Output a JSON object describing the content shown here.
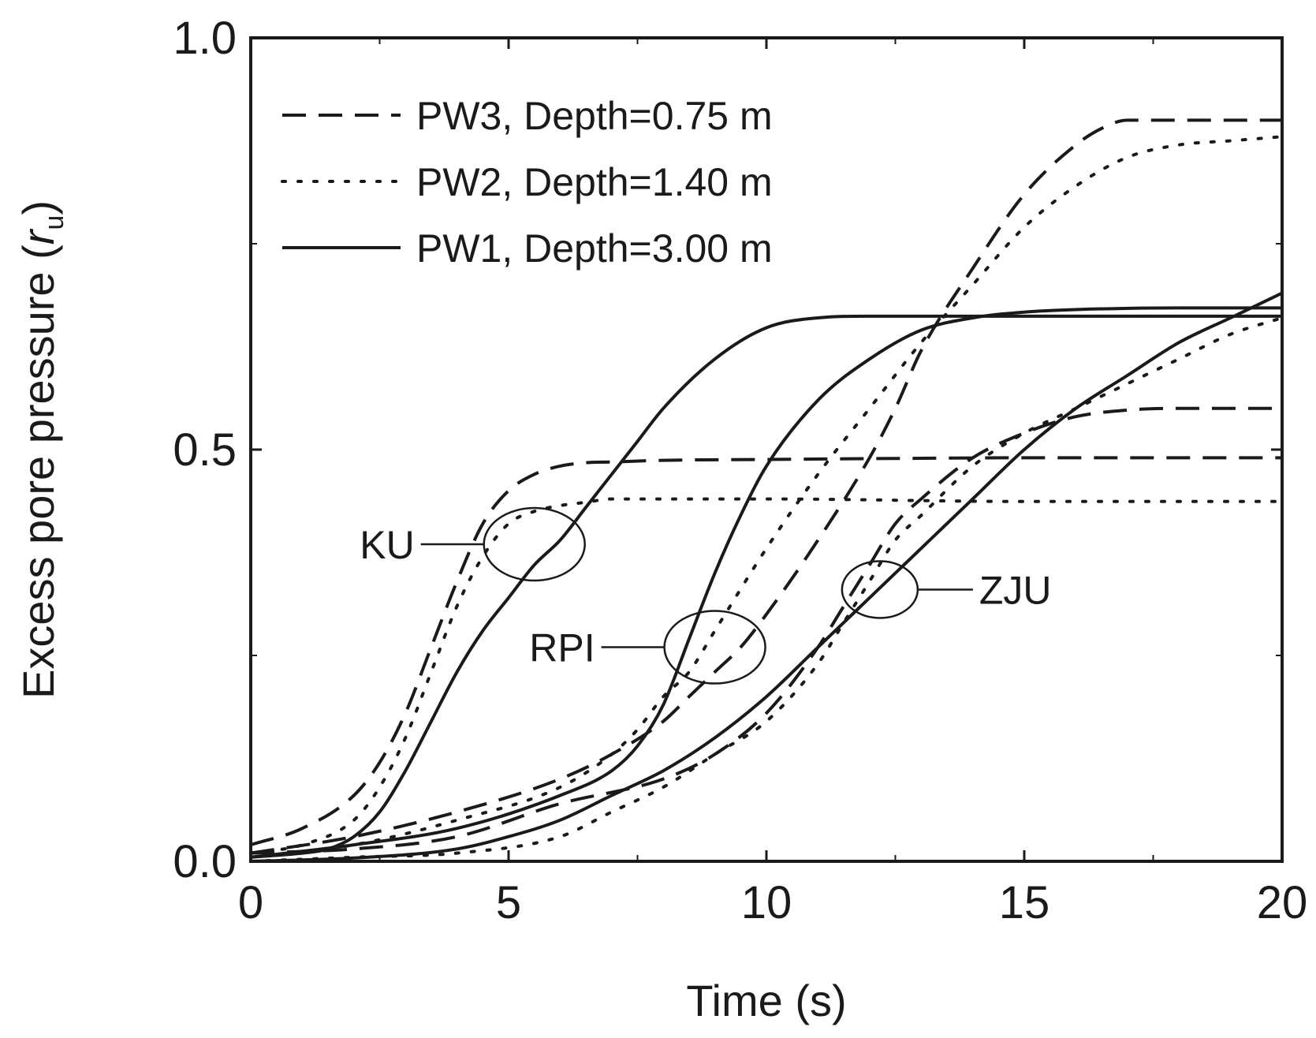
{
  "chart_data": {
    "type": "line",
    "xlabel": "Time (s)",
    "ylabel_main": "Excess pore pressure (",
    "ylabel_sym": "r",
    "ylabel_sub": "u",
    "ylabel_end": ")",
    "xlim": [
      0,
      20
    ],
    "ylim": [
      0,
      1.0
    ],
    "x_ticks": [
      0,
      5,
      10,
      15,
      20
    ],
    "x_tick_labels": [
      "0",
      "5",
      "10",
      "15",
      "20"
    ],
    "y_ticks": [
      0,
      0.5,
      1.0
    ],
    "y_tick_labels": [
      "0.0",
      "0.5",
      "1.0"
    ],
    "grid": false,
    "legend_position": "top-left",
    "legend": [
      {
        "label": "PW3, Depth=0.75 m",
        "style": "dashed"
      },
      {
        "label": "PW2, Depth=1.40 m",
        "style": "dotted"
      },
      {
        "label": "PW1, Depth=3.00 m",
        "style": "solid"
      }
    ],
    "series": [
      {
        "name": "KU PW3",
        "group": "KU",
        "style": "dashed",
        "x": [
          0,
          1,
          2,
          2.5,
          3,
          3.5,
          4,
          4.5,
          5,
          5.5,
          6,
          6.5,
          7,
          8,
          10,
          12,
          15,
          20
        ],
        "y": [
          0.02,
          0.04,
          0.08,
          0.12,
          0.18,
          0.26,
          0.34,
          0.41,
          0.45,
          0.47,
          0.48,
          0.484,
          0.485,
          0.487,
          0.488,
          0.489,
          0.49,
          0.49
        ]
      },
      {
        "name": "KU PW2",
        "group": "KU",
        "style": "dotted",
        "x": [
          0,
          1,
          2,
          2.5,
          3,
          3.5,
          4,
          4.5,
          5,
          5.5,
          6,
          6.5,
          7,
          8,
          10,
          15,
          20
        ],
        "y": [
          0.01,
          0.02,
          0.05,
          0.09,
          0.15,
          0.23,
          0.31,
          0.37,
          0.41,
          0.425,
          0.432,
          0.436,
          0.44,
          0.44,
          0.44,
          0.437,
          0.437
        ]
      },
      {
        "name": "KU PW1",
        "group": "KU",
        "style": "solid",
        "x": [
          0,
          1,
          1.5,
          2,
          2.5,
          3,
          3.5,
          4,
          4.5,
          5,
          5.5,
          6,
          6.5,
          7,
          7.5,
          8,
          9,
          10,
          11,
          12,
          14,
          17,
          20
        ],
        "y": [
          0.005,
          0.01,
          0.015,
          0.03,
          0.06,
          0.11,
          0.17,
          0.23,
          0.28,
          0.32,
          0.36,
          0.39,
          0.43,
          0.47,
          0.51,
          0.55,
          0.61,
          0.648,
          0.66,
          0.662,
          0.662,
          0.662,
          0.662
        ]
      },
      {
        "name": "RPI PW3",
        "group": "RPI",
        "style": "dashed",
        "x": [
          0,
          2,
          4,
          6,
          7,
          8,
          8.5,
          9,
          9.5,
          10,
          11,
          12,
          12.5,
          13,
          14,
          15,
          16,
          16.5,
          17,
          17.5,
          18,
          20
        ],
        "y": [
          0.01,
          0.03,
          0.06,
          0.1,
          0.13,
          0.17,
          0.2,
          0.23,
          0.26,
          0.3,
          0.39,
          0.49,
          0.55,
          0.62,
          0.72,
          0.81,
          0.87,
          0.89,
          0.9,
          0.9,
          0.9,
          0.9
        ]
      },
      {
        "name": "RPI PW2",
        "group": "RPI",
        "style": "dotted",
        "x": [
          0,
          2,
          4,
          6,
          7,
          7.5,
          8,
          8.5,
          9,
          10,
          11,
          12,
          13,
          14,
          15,
          16,
          17,
          18,
          19,
          20
        ],
        "y": [
          0.005,
          0.02,
          0.05,
          0.09,
          0.13,
          0.16,
          0.2,
          0.23,
          0.28,
          0.38,
          0.47,
          0.55,
          0.63,
          0.7,
          0.77,
          0.82,
          0.855,
          0.87,
          0.875,
          0.88
        ]
      },
      {
        "name": "RPI PW1",
        "group": "RPI",
        "style": "solid",
        "x": [
          0,
          2,
          4,
          6,
          7,
          7.5,
          8,
          8.5,
          9,
          9.5,
          10,
          11,
          12,
          13,
          14,
          15,
          16,
          18,
          20
        ],
        "y": [
          0.005,
          0.02,
          0.04,
          0.08,
          0.11,
          0.14,
          0.19,
          0.27,
          0.35,
          0.42,
          0.48,
          0.56,
          0.61,
          0.645,
          0.66,
          0.667,
          0.67,
          0.672,
          0.672
        ]
      },
      {
        "name": "ZJU PW3",
        "group": "ZJU",
        "style": "dashed",
        "x": [
          0,
          2,
          4,
          6,
          8,
          9,
          10,
          11,
          11.5,
          12,
          12.5,
          13,
          14,
          15,
          16,
          17,
          18,
          20
        ],
        "y": [
          0.01,
          0.015,
          0.03,
          0.07,
          0.1,
          0.13,
          0.18,
          0.26,
          0.31,
          0.36,
          0.41,
          0.44,
          0.49,
          0.52,
          0.54,
          0.548,
          0.55,
          0.55
        ]
      },
      {
        "name": "ZJU PW2",
        "group": "ZJU",
        "style": "dotted",
        "x": [
          0,
          2,
          4,
          6,
          7,
          8,
          9,
          10,
          11,
          11.5,
          12,
          12.5,
          13,
          14,
          15,
          16,
          17,
          18,
          19,
          20
        ],
        "y": [
          0,
          0.005,
          0.01,
          0.03,
          0.06,
          0.09,
          0.13,
          0.17,
          0.24,
          0.29,
          0.34,
          0.39,
          0.42,
          0.48,
          0.52,
          0.55,
          0.58,
          0.61,
          0.64,
          0.66
        ]
      },
      {
        "name": "ZJU PW1",
        "group": "ZJU",
        "style": "solid",
        "x": [
          0,
          2,
          4,
          5,
          6,
          7,
          8,
          9,
          10,
          11,
          12,
          13,
          14,
          15,
          16,
          17,
          18,
          19,
          20
        ],
        "y": [
          0,
          0.004,
          0.015,
          0.03,
          0.05,
          0.08,
          0.11,
          0.15,
          0.2,
          0.26,
          0.32,
          0.38,
          0.44,
          0.5,
          0.55,
          0.59,
          0.63,
          0.66,
          0.69
        ]
      }
    ],
    "annotations": [
      {
        "label": "KU",
        "x": 5.5,
        "y": 0.385
      },
      {
        "label": "RPI",
        "x": 9.0,
        "y": 0.26
      },
      {
        "label": "ZJU",
        "x": 12.2,
        "y": 0.33
      }
    ]
  }
}
